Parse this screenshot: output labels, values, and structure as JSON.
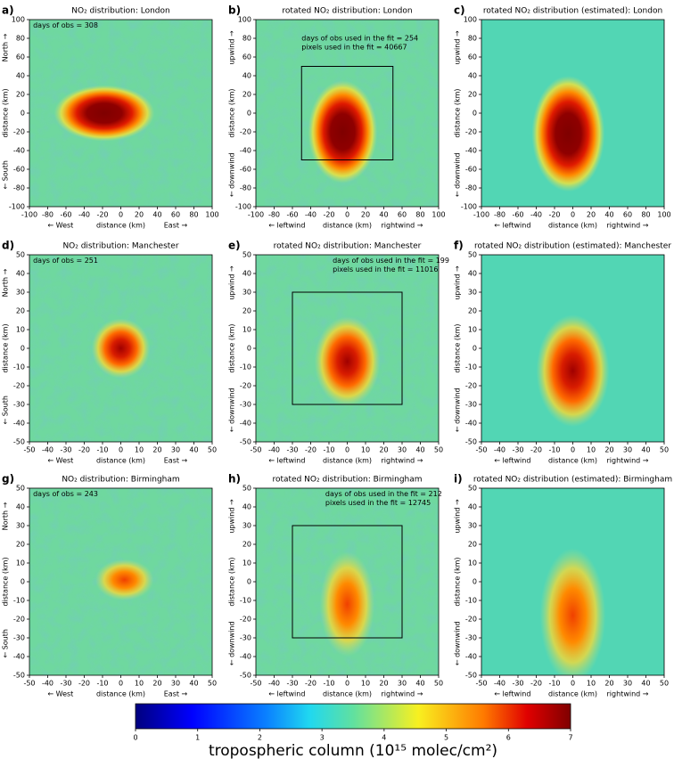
{
  "chart_data": [
    {
      "type": "heatmap",
      "panel": "a)",
      "title": "NO₂ distribution: London",
      "xlim": [
        -100,
        100
      ],
      "ylim": [
        -100,
        100
      ],
      "xticks": [
        -100,
        -80,
        -60,
        -40,
        -20,
        0,
        20,
        40,
        60,
        80,
        100
      ],
      "yticks": [
        -100,
        -80,
        -60,
        -40,
        -20,
        0,
        20,
        40,
        60,
        80,
        100
      ],
      "xlabels": [
        "← West",
        "distance (km)",
        "East →"
      ],
      "ylabels": [
        "North →",
        "distance (km)",
        "← South"
      ],
      "annotations": [
        "days of obs = 308"
      ]
    },
    {
      "type": "heatmap",
      "panel": "b)",
      "title": "rotated NO₂ distribution: London",
      "xlim": [
        -100,
        100
      ],
      "ylim": [
        -100,
        100
      ],
      "xticks": [
        -100,
        -80,
        -60,
        -40,
        -20,
        0,
        20,
        40,
        60,
        80,
        100
      ],
      "yticks": [
        -100,
        -80,
        -60,
        -40,
        -20,
        0,
        20,
        40,
        60,
        80,
        100
      ],
      "xlabels": [
        "← leftwind",
        "distance (km)",
        "rightwind →"
      ],
      "ylabels": [
        "upwind →",
        "distance (km)",
        "← downwind"
      ],
      "annotations": [
        "days of obs used in the fit = 254",
        "pixels used in the fit = 40667"
      ],
      "fit_box": {
        "xlim": [
          -50,
          50
        ],
        "ylim": [
          -50,
          50
        ]
      }
    },
    {
      "type": "heatmap",
      "panel": "c)",
      "title": "rotated NO₂ distribution (estimated): London",
      "xlim": [
        -100,
        100
      ],
      "ylim": [
        -100,
        100
      ],
      "xticks": [
        -100,
        -80,
        -60,
        -40,
        -20,
        0,
        20,
        40,
        60,
        80,
        100
      ],
      "yticks": [
        -100,
        -80,
        -60,
        -40,
        -20,
        0,
        20,
        40,
        60,
        80,
        100
      ],
      "xlabels": [
        "← leftwind",
        "distance (km)",
        "rightwind →"
      ],
      "ylabels": [
        "upwind →",
        "distance (km)",
        "← downwind"
      ]
    },
    {
      "type": "heatmap",
      "panel": "d)",
      "title": "NO₂ distribution: Manchester",
      "xlim": [
        -50,
        50
      ],
      "ylim": [
        -50,
        50
      ],
      "xticks": [
        -50,
        -40,
        -30,
        -20,
        -10,
        0,
        10,
        20,
        30,
        40,
        50
      ],
      "yticks": [
        -50,
        -40,
        -30,
        -20,
        -10,
        0,
        10,
        20,
        30,
        40,
        50
      ],
      "xlabels": [
        "← West",
        "distance (km)",
        "East →"
      ],
      "ylabels": [
        "North →",
        "distance (km)",
        "← South"
      ],
      "annotations": [
        "days of obs = 251"
      ]
    },
    {
      "type": "heatmap",
      "panel": "e)",
      "title": "rotated NO₂ distribution: Manchester",
      "xlim": [
        -50,
        50
      ],
      "ylim": [
        -50,
        50
      ],
      "xticks": [
        -50,
        -40,
        -30,
        -20,
        -10,
        0,
        10,
        20,
        30,
        40,
        50
      ],
      "yticks": [
        -50,
        -40,
        -30,
        -20,
        -10,
        0,
        10,
        20,
        30,
        40,
        50
      ],
      "xlabels": [
        "← leftwind",
        "distance (km)",
        "rightwind →"
      ],
      "ylabels": [
        "upwind →",
        "distance (km)",
        "← downwind"
      ],
      "annotations": [
        "days of obs used in the fit = 199",
        "pixels used in the fit = 11016"
      ],
      "fit_box": {
        "xlim": [
          -30,
          30
        ],
        "ylim": [
          -30,
          30
        ]
      }
    },
    {
      "type": "heatmap",
      "panel": "f)",
      "title": "rotated NO₂ distribution (estimated): Manchester",
      "xlim": [
        -50,
        50
      ],
      "ylim": [
        -50,
        50
      ],
      "xticks": [
        -50,
        -40,
        -30,
        -20,
        -10,
        0,
        10,
        20,
        30,
        40,
        50
      ],
      "yticks": [
        -50,
        -40,
        -30,
        -20,
        -10,
        0,
        10,
        20,
        30,
        40,
        50
      ],
      "xlabels": [
        "← leftwind",
        "distance (km)",
        "rightwind →"
      ],
      "ylabels": [
        "upwind →",
        "distance (km)",
        "← downwind"
      ]
    },
    {
      "type": "heatmap",
      "panel": "g)",
      "title": "NO₂ distribution: Birmingham",
      "xlim": [
        -50,
        50
      ],
      "ylim": [
        -50,
        50
      ],
      "xticks": [
        -50,
        -40,
        -30,
        -20,
        -10,
        0,
        10,
        20,
        30,
        40,
        50
      ],
      "yticks": [
        -50,
        -40,
        -30,
        -20,
        -10,
        0,
        10,
        20,
        30,
        40,
        50
      ],
      "xlabels": [
        "← West",
        "distance (km)",
        "East →"
      ],
      "ylabels": [
        "North →",
        "distance (km)",
        "← South"
      ],
      "annotations": [
        "days of obs = 243"
      ]
    },
    {
      "type": "heatmap",
      "panel": "h)",
      "title": "rotated NO₂ distribution: Birmingham",
      "xlim": [
        -50,
        50
      ],
      "ylim": [
        -50,
        50
      ],
      "xticks": [
        -50,
        -40,
        -30,
        -20,
        -10,
        0,
        10,
        20,
        30,
        40,
        50
      ],
      "yticks": [
        -50,
        -40,
        -30,
        -20,
        -10,
        0,
        10,
        20,
        30,
        40,
        50
      ],
      "xlabels": [
        "← leftwind",
        "distance (km)",
        "rightwind →"
      ],
      "ylabels": [
        "upwind →",
        "distance (km)",
        "← downwind"
      ],
      "annotations": [
        "days of obs used in the fit = 212",
        "pixels used in the fit = 12745"
      ],
      "fit_box": {
        "xlim": [
          -30,
          30
        ],
        "ylim": [
          -30,
          30
        ]
      }
    },
    {
      "type": "heatmap",
      "panel": "i)",
      "title": "rotated NO₂ distribution (estimated): Birmingham",
      "xlim": [
        -50,
        50
      ],
      "ylim": [
        -50,
        50
      ],
      "xticks": [
        -50,
        -40,
        -30,
        -20,
        -10,
        0,
        10,
        20,
        30,
        40,
        50
      ],
      "yticks": [
        -50,
        -40,
        -30,
        -20,
        -10,
        0,
        10,
        20,
        30,
        40,
        50
      ],
      "xlabels": [
        "← leftwind",
        "distance (km)",
        "rightwind →"
      ],
      "ylabels": [
        "upwind →",
        "distance (km)",
        "← downwind"
      ]
    },
    {
      "type": "colorbar",
      "label": "tropospheric column (10¹⁵ molec/cm²)",
      "lim": [
        0,
        7
      ],
      "ticks": [
        0,
        1,
        2,
        3,
        4,
        5,
        6,
        7
      ]
    }
  ]
}
